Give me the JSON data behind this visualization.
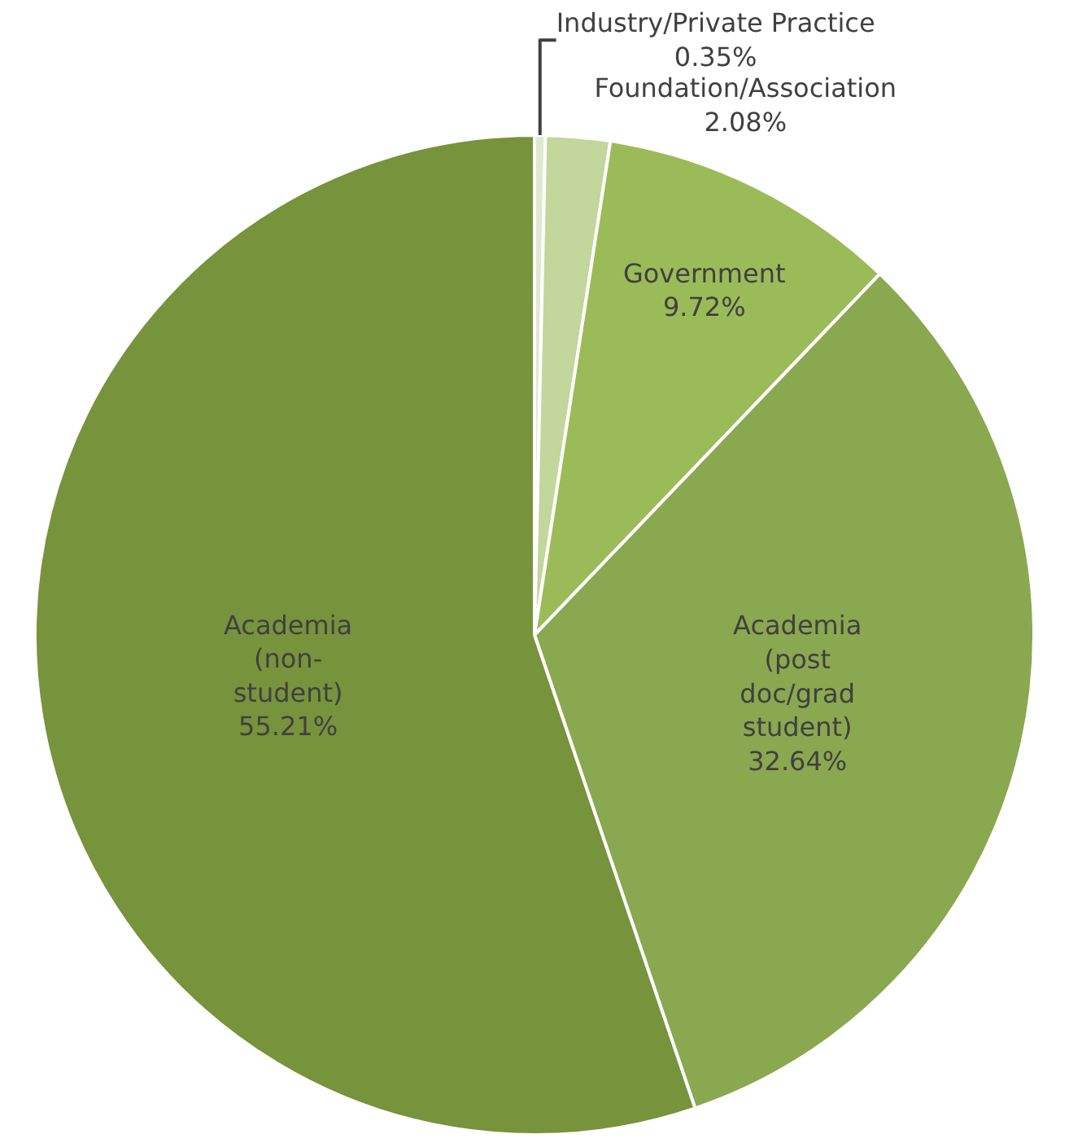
{
  "chart_data": {
    "type": "pie",
    "categories": [
      "Industry/Private Practice",
      "Foundation/Association",
      "Government",
      "Academia (post doc/grad student)",
      "Academia (non-student)"
    ],
    "values": [
      0.35,
      2.08,
      9.72,
      32.64,
      55.21
    ],
    "value_labels": [
      "0.35%",
      "2.08%",
      "9.72%",
      "32.64%",
      "55.21%"
    ],
    "colors": [
      "#dfe9cf",
      "#c3d69b",
      "#9bbb59",
      "#8aa84f",
      "#77933c"
    ],
    "legend": false
  }
}
